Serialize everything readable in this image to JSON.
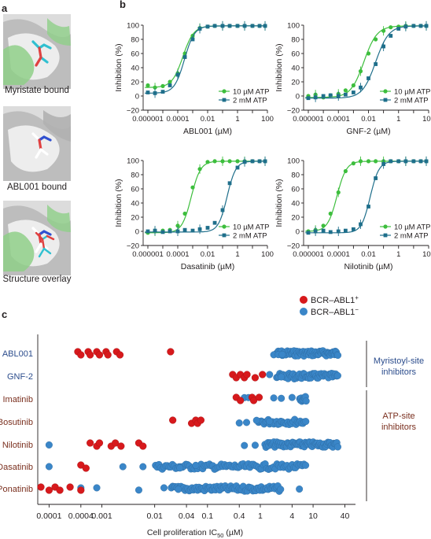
{
  "panels": {
    "a": "a",
    "b": "b",
    "c": "c"
  },
  "panel_a": {
    "captions": [
      "Myristate bound",
      "ABL001 bound",
      "Structure overlay"
    ]
  },
  "colors": {
    "green": "#3dbe3d",
    "teal": "#1f6f8b",
    "red": "#d7191c",
    "blue": "#3a86c8",
    "blue_edge": "#2c6aa0",
    "label_blue": "#2b4c8c",
    "label_brown": "#7a2f1e",
    "protein_grey": "#c9c9c9",
    "protein_green": "#8fcf88"
  },
  "chart_data": [
    {
      "type": "line",
      "title": "ABL001 (µM)",
      "xlabel": "ABL001 (µM)",
      "ylabel": "Inhibition (%)",
      "x_scale": "log",
      "x_ticks": [
        "0.000001",
        "0.0001",
        "0.01",
        "1",
        "100"
      ],
      "ylim": [
        -20,
        100
      ],
      "y_ticks": [
        "−20",
        "0",
        "20",
        "40",
        "60",
        "80",
        "100"
      ],
      "legend": [
        "10 µM ATP",
        "2 mM ATP"
      ],
      "legend_position": "bottom-right",
      "series": [
        {
          "name": "10 µM ATP",
          "color": "#3dbe3d",
          "marker": "circle",
          "x": [
            1e-06,
            3e-06,
            1e-05,
            3e-05,
            0.0001,
            0.0003,
            0.001,
            0.003,
            0.01,
            0.03,
            0.1,
            0.3,
            1,
            3,
            10,
            30,
            70
          ],
          "y": [
            15,
            12,
            14,
            20,
            32,
            60,
            85,
            96,
            98,
            99,
            99,
            99,
            99,
            99,
            99,
            99,
            99
          ],
          "ec50": 0.00022,
          "hill": 1.2
        },
        {
          "name": "2 mM ATP",
          "color": "#1f6f8b",
          "marker": "square",
          "x": [
            1e-06,
            3e-06,
            1e-05,
            3e-05,
            0.0001,
            0.0003,
            0.001,
            0.003,
            0.01,
            0.03,
            0.1,
            0.3,
            1,
            3,
            10,
            30,
            70
          ],
          "y": [
            5,
            4,
            6,
            15,
            30,
            55,
            80,
            95,
            98,
            99,
            99,
            99,
            99,
            99,
            99,
            99,
            99
          ],
          "ec50": 0.00028,
          "hill": 1.3
        }
      ]
    },
    {
      "type": "line",
      "title": "GNF-2 (µM)",
      "xlabel": "GNF-2 (µM)",
      "ylabel": "Inhibition (%)",
      "x_scale": "log",
      "x_ticks": [
        "0.000001",
        "0.0001",
        "0.01",
        "1",
        "100"
      ],
      "ylim": [
        -20,
        100
      ],
      "y_ticks": [
        "−20",
        "0",
        "20",
        "40",
        "60",
        "80",
        "100"
      ],
      "legend": [
        "10 µM ATP",
        "2 mM ATP"
      ],
      "legend_position": "bottom-right",
      "series": [
        {
          "name": "10 µM ATP",
          "color": "#3dbe3d",
          "marker": "circle",
          "x": [
            1e-06,
            3e-06,
            1e-05,
            3e-05,
            0.0001,
            0.0003,
            0.001,
            0.003,
            0.01,
            0.03,
            0.1,
            0.3,
            1,
            3,
            10,
            30,
            70
          ],
          "y": [
            0,
            2,
            -2,
            1,
            3,
            8,
            15,
            35,
            60,
            80,
            92,
            97,
            98,
            99,
            99,
            99,
            99
          ],
          "ec50": 0.005,
          "hill": 1.0
        },
        {
          "name": "2 mM ATP",
          "color": "#1f6f8b",
          "marker": "square",
          "x": [
            1e-06,
            3e-06,
            1e-05,
            3e-05,
            0.0001,
            0.0003,
            0.001,
            0.003,
            0.01,
            0.03,
            0.1,
            0.3,
            1,
            3,
            10,
            30,
            70
          ],
          "y": [
            -3,
            -2,
            0,
            1,
            0,
            2,
            5,
            12,
            25,
            45,
            70,
            85,
            95,
            98,
            99,
            99,
            99
          ],
          "ec50": 0.03,
          "hill": 1.0
        }
      ]
    },
    {
      "type": "line",
      "title": "Dasatinib (µM)",
      "xlabel": "Dasatinib (µM)",
      "ylabel": "Inhibition (%)",
      "x_scale": "log",
      "x_ticks": [
        "0.000001",
        "0.0001",
        "0.01",
        "1",
        "100"
      ],
      "ylim": [
        -20,
        100
      ],
      "y_ticks": [
        "−20",
        "0",
        "20",
        "40",
        "60",
        "80",
        "100"
      ],
      "legend": [
        "10 µM ATP",
        "2 mM ATP"
      ],
      "legend_position": "bottom-right",
      "series": [
        {
          "name": "10 µM ATP",
          "color": "#3dbe3d",
          "marker": "circle",
          "x": [
            1e-06,
            3e-06,
            1e-05,
            3e-05,
            0.0001,
            0.0003,
            0.001,
            0.003,
            0.01,
            0.03,
            0.1,
            0.3,
            1,
            3,
            10,
            30,
            70
          ],
          "y": [
            -2,
            0,
            1,
            2,
            8,
            25,
            62,
            88,
            98,
            99,
            99,
            99,
            99,
            99,
            99,
            99,
            99
          ],
          "ec50": 0.0008,
          "hill": 1.4
        },
        {
          "name": "2 mM ATP",
          "color": "#1f6f8b",
          "marker": "square",
          "x": [
            1e-06,
            3e-06,
            1e-05,
            3e-05,
            0.0001,
            0.0003,
            0.001,
            0.003,
            0.01,
            0.03,
            0.1,
            0.3,
            1,
            3,
            10,
            30,
            70
          ],
          "y": [
            0,
            1,
            -1,
            0,
            0,
            2,
            1,
            3,
            5,
            12,
            30,
            68,
            90,
            98,
            99,
            99,
            99
          ],
          "ec50": 0.2,
          "hill": 1.5
        }
      ]
    },
    {
      "type": "line",
      "title": "Nilotinib (µM)",
      "xlabel": "Nilotinib (µM)",
      "ylabel": "Inhibition (%)",
      "x_scale": "log",
      "x_ticks": [
        "0.000001",
        "0.0001",
        "0.01",
        "1",
        "100"
      ],
      "ylim": [
        -20,
        100
      ],
      "y_ticks": [
        "−20",
        "0",
        "20",
        "40",
        "60",
        "80",
        "100"
      ],
      "legend": [
        "10 µM ATP",
        "2 mM ATP"
      ],
      "legend_position": "bottom-right",
      "series": [
        {
          "name": "10 µM ATP",
          "color": "#3dbe3d",
          "marker": "circle",
          "x": [
            1e-06,
            3e-06,
            1e-05,
            3e-05,
            0.0001,
            0.0003,
            0.001,
            0.003,
            0.01,
            0.03,
            0.1,
            0.3,
            1,
            3,
            10,
            30,
            70
          ],
          "y": [
            0,
            2,
            8,
            25,
            55,
            85,
            96,
            99,
            99,
            99,
            99,
            99,
            99,
            99,
            99,
            99,
            99
          ],
          "ec50": 8e-05,
          "hill": 1.4
        },
        {
          "name": "2 mM ATP",
          "color": "#1f6f8b",
          "marker": "square",
          "x": [
            1e-06,
            3e-06,
            1e-05,
            3e-05,
            0.0001,
            0.0003,
            0.001,
            0.003,
            0.01,
            0.03,
            0.1,
            0.3,
            1,
            3,
            10,
            30,
            70
          ],
          "y": [
            -2,
            0,
            1,
            -1,
            0,
            1,
            3,
            10,
            35,
            75,
            95,
            99,
            99,
            99,
            99,
            99,
            99
          ],
          "ec50": 0.013,
          "hill": 1.5
        }
      ]
    },
    {
      "type": "scatter",
      "xlabel": "Cell proliferation IC50 (µM)",
      "xlabel_main": "Cell proliferation IC",
      "xlabel_sub": "50",
      "xlabel_unit": " (µM)",
      "x_scale": "log",
      "xlim": [
        7e-05,
        50
      ],
      "x_ticks": [
        {
          "v": 0.0001,
          "label": "0.0001"
        },
        {
          "v": 0.0004,
          "label": "0.0004"
        },
        {
          "v": 0.001,
          "label": "0.001"
        },
        {
          "v": 0.01,
          "label": "0.01"
        },
        {
          "v": 0.04,
          "label": "0.04"
        },
        {
          "v": 0.1,
          "label": "0.1"
        },
        {
          "v": 0.4,
          "label": "0.4"
        },
        {
          "v": 1,
          "label": "1"
        },
        {
          "v": 4,
          "label": "4"
        },
        {
          "v": 10,
          "label": "10"
        },
        {
          "v": 40,
          "label": "40"
        }
      ],
      "legend": [
        {
          "name": "BCR–ABL1",
          "sup": "+",
          "color": "#d7191c"
        },
        {
          "name": "BCR–ABL1",
          "sup": "−",
          "color": "#3a86c8"
        }
      ],
      "legend_position": "top-right",
      "categories": [
        "ABL001",
        "GNF-2",
        "Imatinib",
        "Bosutinib",
        "Nilotinib",
        "Dasatinib",
        "Ponatinib"
      ],
      "category_groups": [
        {
          "label_lines": [
            "Myristoyl-site",
            "inhibitors"
          ],
          "members": [
            "ABL001",
            "GNF-2"
          ]
        },
        {
          "label_lines": [
            "ATP-site",
            "inhibitors"
          ],
          "members": [
            "Imatinib",
            "Bosutinib",
            "Nilotinib",
            "Dasatinib",
            "Ponatinib"
          ]
        }
      ],
      "positive": {
        "ABL001": [
          0.00035,
          0.0004,
          0.00055,
          0.0006,
          0.0008,
          0.0009,
          0.0012,
          0.0013,
          0.0019,
          0.0022,
          0.02
        ],
        "GNF-2": [
          0.3,
          0.35,
          0.42,
          0.5,
          0.56,
          0.8,
          1.1
        ],
        "Imatinib": [
          0.35,
          0.42,
          0.7,
          0.75,
          0.95
        ],
        "Bosutinib": [
          0.022,
          0.05,
          0.06,
          0.065,
          0.075
        ],
        "Nilotinib": [
          0.0006,
          0.0008,
          0.0009,
          0.0015,
          0.0018,
          0.0023,
          0.005,
          0.006
        ],
        "Dasatinib": [
          0.0004,
          0.0005
        ],
        "Ponatinib": [
          7e-05,
          0.0001,
          0.00013,
          0.00016,
          0.00025,
          0.0004
        ]
      },
      "negative_explicit": {
        "ABL001": [
          1.8,
          2.2,
          2.6
        ],
        "GNF-2": [
          1.5,
          2.5
        ],
        "Imatinib": [
          0.5,
          0.6,
          1.8,
          2.5,
          4.0
        ],
        "Bosutinib": [
          0.4,
          0.55,
          0.85,
          1.5
        ],
        "Nilotinib": [
          0.0001,
          0.5,
          0.8
        ],
        "Dasatinib": [
          0.0001,
          0.0025,
          0.006,
          0.03,
          0.06
        ],
        "Ponatinib": [
          0.0004,
          0.0008,
          0.005,
          0.015,
          0.028,
          5.5
        ]
      },
      "negative_bands": {
        "ABL001": [
          [
            2.0,
            30,
            75
          ]
        ],
        "GNF-2": [
          [
            2.0,
            30,
            60
          ]
        ],
        "Imatinib": [
          [
            5.5,
            7.5,
            10
          ]
        ],
        "Bosutinib": [
          [
            0.9,
            7.5,
            35
          ]
        ],
        "Nilotinib": [
          [
            1.2,
            30,
            75
          ]
        ],
        "Dasatinib": [
          [
            0.01,
            7.5,
            90
          ]
        ],
        "Ponatinib": [
          [
            0.02,
            2.5,
            80
          ]
        ]
      }
    }
  ]
}
